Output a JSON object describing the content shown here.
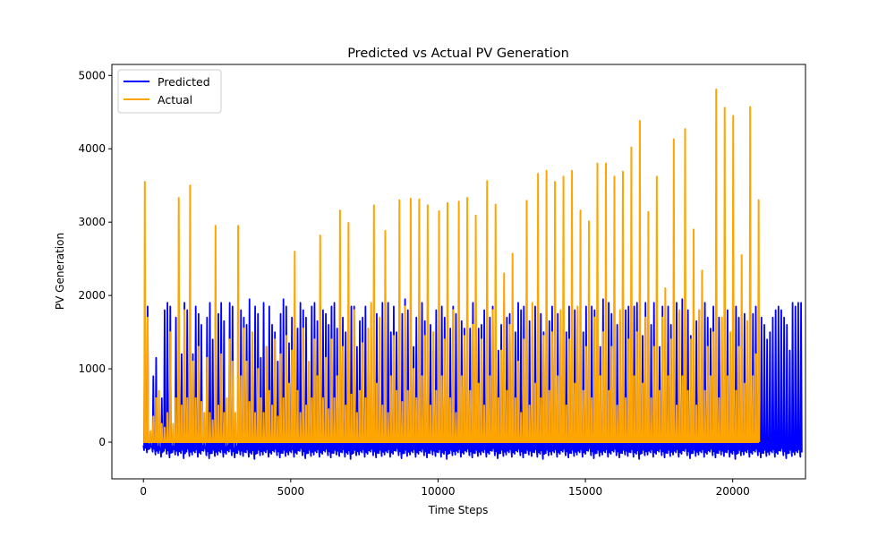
{
  "chart_data": {
    "type": "line",
    "title": "Predicted vs Actual PV Generation",
    "xlabel": "Time Steps",
    "ylabel": "PV Generation",
    "xlim": [
      -1070,
      22470
    ],
    "ylim": [
      -500,
      5150
    ],
    "xticks": [
      0,
      5000,
      10000,
      15000,
      20000
    ],
    "xtick_labels": [
      "0",
      "5000",
      "10000",
      "15000",
      "20000"
    ],
    "yticks": [
      0,
      1000,
      2000,
      3000,
      4000,
      5000
    ],
    "ytick_labels": [
      "0",
      "1000",
      "2000",
      "3000",
      "4000",
      "5000"
    ],
    "grid": false,
    "legend_position": "upper left",
    "day_length": 96,
    "series": [
      {
        "name": "Predicted",
        "color": "#0000ff",
        "daily_peaks": [
          1880,
          1850,
          0,
          900,
          1150,
          0,
          600,
          1800,
          1900,
          1850,
          0,
          1700,
          1900,
          1200,
          1900,
          1800,
          1850,
          1200,
          1850,
          1750,
          1600,
          0,
          1700,
          1900,
          1400,
          1900,
          1750,
          1900,
          1650,
          0,
          1900,
          1850,
          0,
          1000,
          1800,
          1700,
          1600,
          1950,
          1400,
          1850,
          1750,
          1150,
          1900,
          1300,
          1850,
          1600,
          1500,
          1100,
          1750,
          1950,
          1850,
          1350,
          1700,
          1900,
          1550,
          1900,
          1800,
          1700,
          800,
          1850,
          1900,
          1650,
          1850,
          1800,
          1750,
          1600,
          1850,
          1900,
          1550,
          1750,
          1700,
          1500,
          1650,
          1850,
          1850,
          1300,
          1650,
          1700,
          1850,
          1200,
          1450,
          1550,
          1750,
          1600,
          1900,
          1850,
          1900,
          1500,
          1850,
          1500,
          1700,
          1750,
          1950,
          1800,
          1750,
          1300,
          1700,
          1500,
          1900,
          1650,
          1850,
          1600,
          1250,
          1800,
          1900,
          1850,
          1700,
          1800,
          1550,
          1850,
          1750,
          1900,
          1650,
          1550,
          1800,
          1550,
          1900,
          1850,
          1550,
          1600,
          1800,
          1300,
          1700,
          1850,
          1800,
          1250,
          1600,
          1900,
          1700,
          1750,
          1850,
          1500,
          1900,
          1800,
          1850,
          1700,
          1650,
          1450,
          1850,
          1850,
          1750,
          1500,
          1900,
          1650,
          1850,
          1900,
          1750,
          1450,
          1850,
          1500,
          1850,
          1650,
          1800,
          1700,
          1550,
          1500,
          1850,
          1650,
          1850,
          1800,
          1900,
          1300,
          1950,
          1850,
          1900,
          1750,
          1800,
          1600,
          1650,
          1500,
          1800,
          1850,
          1500,
          1850,
          1900,
          1650,
          1450,
          1900,
          1750,
          1600,
          1900,
          1800,
          1300,
          1850,
          1700,
          1850,
          1600,
          1750,
          1900,
          1750,
          1950,
          1850,
          1800,
          1450,
          1750,
          1650,
          1800,
          1850,
          1900,
          1700,
          1550,
          1850,
          1800,
          1700,
          1500,
          1850,
          1800,
          1400,
          1900,
          1850,
          1700,
          1600,
          1750,
          1200,
          1800,
          1750,
          1850,
          1450,
          1700,
          1600,
          1400,
          1500,
          1700,
          1800,
          1850,
          1800,
          1700,
          1600,
          1250,
          1900,
          1850,
          1900,
          1900
        ],
        "daily_lows": [
          -110,
          -140,
          -90,
          -130,
          -170,
          -150,
          -200,
          -120,
          -160,
          -210,
          -140,
          -170,
          -180,
          -150,
          -220,
          -130,
          -190,
          -170,
          -140,
          -200,
          -160,
          -120,
          -180,
          -220,
          -150,
          -190,
          -170,
          -140,
          -200,
          -160,
          -130,
          -180,
          -210,
          -150,
          -170,
          -190,
          -140,
          -200,
          -160,
          -230,
          -150,
          -180,
          -170,
          -140,
          -200,
          -160,
          -130,
          -180,
          -210,
          -150,
          -190,
          -170,
          -140,
          -200,
          -160,
          -120,
          -180,
          -220,
          -150,
          -190,
          -170,
          -140,
          -200,
          -160,
          -130,
          -180,
          -210,
          -150,
          -170,
          -190,
          -140,
          -200,
          -160,
          -230,
          -150,
          -180,
          -170,
          -140,
          -200,
          -160,
          -130,
          -180,
          -210,
          -150,
          -190,
          -170,
          -140,
          -200,
          -160,
          -120,
          -180,
          -220,
          -150,
          -190,
          -170,
          -140,
          -200,
          -160,
          -130,
          -180,
          -210,
          -150,
          -170,
          -190,
          -140,
          -200,
          -160,
          -230,
          -150,
          -180,
          -170,
          -140,
          -200,
          -160,
          -130,
          -180,
          -210,
          -150,
          -190,
          -170,
          -140,
          -200,
          -160,
          -120,
          -180,
          -220,
          -150,
          -190,
          -170,
          -140,
          -200,
          -160,
          -130,
          -180,
          -210,
          -150,
          -170,
          -190,
          -140,
          -200,
          -160,
          -230,
          -150,
          -180,
          -170,
          -140,
          -200,
          -160,
          -130,
          -180,
          -210,
          -150,
          -190,
          -170,
          -140,
          -200,
          -160,
          -120,
          -180,
          -220,
          -150,
          -190,
          -170,
          -140,
          -200,
          -160,
          -130,
          -180,
          -210,
          -150,
          -170,
          -190,
          -140,
          -200,
          -160,
          -230,
          -150,
          -180,
          -170,
          -140,
          -200,
          -160,
          -130,
          -180,
          -210,
          -150,
          -190,
          -170,
          -140,
          -200,
          -160,
          -120,
          -180,
          -220,
          -150,
          -190,
          -170,
          -140,
          -200,
          -160,
          -130,
          -180,
          -210,
          -150,
          -170,
          -190,
          -140,
          -200,
          -160,
          -230,
          -150,
          -180,
          -170,
          -140,
          -200,
          -160,
          -130,
          -180,
          -210,
          -150,
          -190,
          -170,
          -140,
          -200,
          -160,
          -120,
          -180,
          -220,
          -150,
          -190,
          -170,
          -140,
          -200,
          -160
        ]
      },
      {
        "name": "Actual",
        "color": "#ffa500",
        "daily_peaks": [
          3550,
          1700,
          150,
          350,
          600,
          700,
          250,
          200,
          400,
          1500,
          250,
          600,
          3330,
          500,
          1800,
          600,
          3500,
          1100,
          600,
          1300,
          550,
          400,
          1150,
          400,
          300,
          2950,
          500,
          1200,
          400,
          600,
          1400,
          1100,
          400,
          2950,
          900,
          1550,
          1100,
          550,
          1500,
          400,
          1000,
          600,
          400,
          1300,
          700,
          500,
          1400,
          350,
          1200,
          600,
          1450,
          800,
          1250,
          2600,
          700,
          400,
          1550,
          500,
          1100,
          600,
          1400,
          900,
          2820,
          600,
          1150,
          450,
          1400,
          600,
          900,
          3160,
          1300,
          500,
          2990,
          650,
          1800,
          400,
          700,
          1350,
          600,
          1550,
          1900,
          3230,
          800,
          1700,
          500,
          2880,
          400,
          900,
          1450,
          700,
          3300,
          550,
          1850,
          700,
          3320,
          1000,
          600,
          3310,
          900,
          1450,
          3230,
          500,
          1500,
          700,
          3150,
          900,
          1400,
          3260,
          600,
          1800,
          400,
          3280,
          900,
          1450,
          3330,
          700,
          1600,
          3090,
          800,
          1400,
          500,
          3560,
          900,
          1800,
          3240,
          600,
          1250,
          2300,
          700,
          1600,
          2570,
          600,
          1100,
          400,
          1400,
          3290,
          500,
          1900,
          800,
          3660,
          600,
          1450,
          3700,
          700,
          1500,
          3550,
          900,
          1800,
          3620,
          500,
          1400,
          3700,
          800,
          1850,
          3160,
          700,
          1300,
          3010,
          600,
          1700,
          3800,
          900,
          1500,
          3800,
          700,
          1300,
          3620,
          500,
          1800,
          3690,
          600,
          1400,
          4020,
          900,
          1500,
          4380,
          800,
          1700,
          3140,
          600,
          1300,
          3620,
          700,
          1700,
          2100,
          900,
          1400,
          4130,
          500,
          1800,
          900,
          4270,
          700,
          1400,
          2900,
          500,
          1800,
          2340,
          700,
          1300,
          900,
          1500,
          4810,
          600,
          1700,
          4560,
          900,
          1500,
          4450,
          700,
          1300,
          2550,
          800,
          1650,
          4570,
          900,
          1200,
          3300
        ]
      }
    ]
  }
}
